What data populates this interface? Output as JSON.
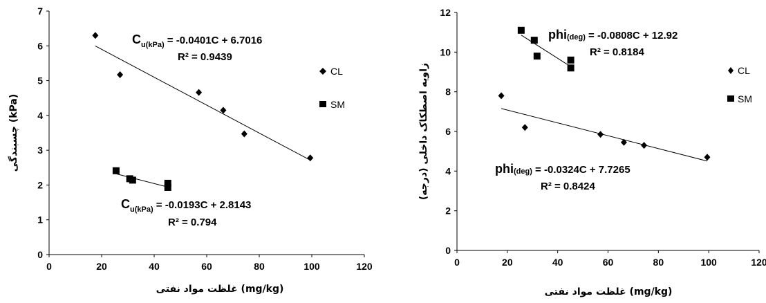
{
  "chart_data": [
    {
      "type": "scatter",
      "xlabel": "غلظت مواد نفتی (mg/kg)",
      "ylabel": "چسبندگی (kPa)",
      "xlim": [
        0,
        120
      ],
      "ylim": [
        0,
        7
      ],
      "xticks": [
        0,
        20,
        40,
        60,
        80,
        100,
        120
      ],
      "yticks": [
        0,
        1,
        2,
        3,
        4,
        5,
        6,
        7
      ],
      "grid": false,
      "legend_position": "right",
      "series": [
        {
          "name": "CL",
          "marker": "diamond",
          "points": [
            [
              17.6,
              6.3
            ],
            [
              27,
              5.17
            ],
            [
              57,
              4.66
            ],
            [
              66.3,
              4.15
            ],
            [
              74.3,
              3.47
            ],
            [
              99.4,
              2.78
            ]
          ],
          "trend": {
            "slope": -0.0401,
            "intercept": 6.7016,
            "x_range": [
              17.6,
              99.4
            ]
          },
          "equation": {
            "prefix": "C",
            "sub": "u(kPa)",
            "rest": " = -0.0401C + 6.7016"
          },
          "r2": "R² = 0.9439"
        },
        {
          "name": "SM",
          "marker": "square",
          "points": [
            [
              25.5,
              2.41
            ],
            [
              30.7,
              2.18
            ],
            [
              31.8,
              2.14
            ],
            [
              45.2,
              2.05
            ],
            [
              45.2,
              1.93
            ]
          ],
          "trend": {
            "slope": -0.0193,
            "intercept": 2.8143,
            "x_range": [
              25.5,
              45.2
            ]
          },
          "equation": {
            "prefix": "C",
            "sub": "u(kPa)",
            "rest": " = -0.0193C + 2.8143"
          },
          "r2": "R² = 0.794"
        }
      ]
    },
    {
      "type": "scatter",
      "xlabel": "غلظت مواد نفتی (mg/kg)",
      "ylabel": "زاویه اصطکاک داخلی (درجه)",
      "xlim": [
        0,
        120
      ],
      "ylim": [
        0,
        12
      ],
      "xticks": [
        0,
        20,
        40,
        60,
        80,
        100,
        120
      ],
      "yticks": [
        0,
        2,
        4,
        6,
        8,
        10,
        12
      ],
      "grid": false,
      "legend_position": "right",
      "series": [
        {
          "name": "CL",
          "marker": "diamond",
          "points": [
            [
              17.6,
              7.8
            ],
            [
              27,
              6.2
            ],
            [
              57,
              5.85
            ],
            [
              66.3,
              5.45
            ],
            [
              74.3,
              5.3
            ],
            [
              99.4,
              4.7
            ]
          ],
          "trend": {
            "slope": -0.0324,
            "intercept": 7.7265,
            "x_range": [
              17.6,
              99.4
            ]
          },
          "equation": {
            "prefix": "phi",
            "sub": "(deg)",
            "rest": " = -0.0324C + 7.7265"
          },
          "r2": "R² = 0.8424"
        },
        {
          "name": "SM",
          "marker": "square",
          "points": [
            [
              25.5,
              11.1
            ],
            [
              30.7,
              10.6
            ],
            [
              31.8,
              9.8
            ],
            [
              45.2,
              9.6
            ],
            [
              45.2,
              9.2
            ]
          ],
          "trend": {
            "slope": -0.0808,
            "intercept": 12.92,
            "x_range": [
              25.5,
              45.2
            ]
          },
          "equation": {
            "prefix": "phi",
            "sub": "(deg)",
            "rest": " = -0.0808C + 12.92"
          },
          "r2": "R² = 0.8184"
        }
      ]
    }
  ]
}
